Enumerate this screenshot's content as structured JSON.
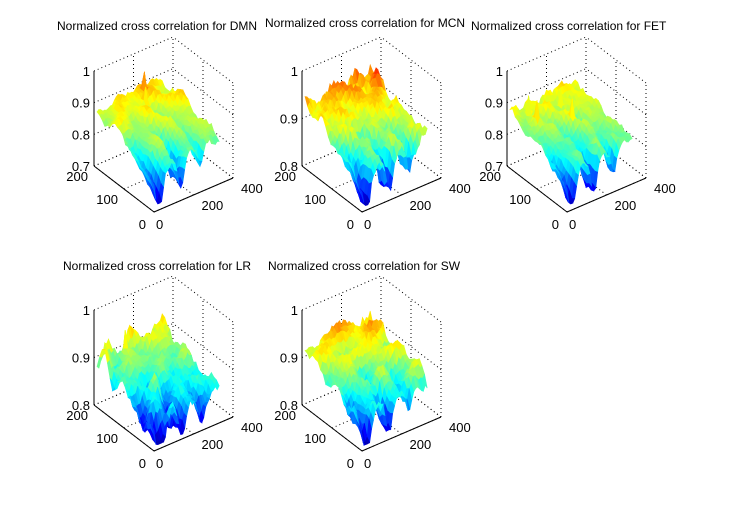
{
  "figure": {
    "background": "#ffffff",
    "colormap": "jet"
  },
  "chart_data": [
    {
      "type": "surface3d",
      "title": "Normalized cross correlation for DMN",
      "xlim": [
        0,
        400
      ],
      "ylim": [
        0,
        200
      ],
      "zlim": [
        0.7,
        1.0
      ],
      "xticks": [
        "0",
        "200",
        "400"
      ],
      "yticks": [
        "0",
        "100",
        "200"
      ],
      "zticks": [
        "0.7",
        "0.8",
        "0.9",
        "1"
      ],
      "surface": {
        "x_extent": [
          0,
          330
        ],
        "y_extent": [
          0,
          190
        ],
        "z_min": 0.72,
        "z_max": 0.96,
        "z_mean": 0.86,
        "seed": 11,
        "valley_depth": 0.13,
        "spikes": 2
      },
      "grid": true
    },
    {
      "type": "surface3d",
      "title": "Normalized cross correlation for MCN",
      "xlim": [
        0,
        400
      ],
      "ylim": [
        0,
        200
      ],
      "zlim": [
        0.8,
        1.0
      ],
      "xticks": [
        "0",
        "200",
        "400"
      ],
      "yticks": [
        "0",
        "100",
        "200"
      ],
      "zticks": [
        "0.8",
        "0.9",
        "1"
      ],
      "surface": {
        "x_extent": [
          0,
          330
        ],
        "y_extent": [
          0,
          190
        ],
        "z_min": 0.81,
        "z_max": 0.98,
        "z_mean": 0.91,
        "seed": 23,
        "valley_depth": 0.09,
        "spikes": 0
      },
      "grid": true
    },
    {
      "type": "surface3d",
      "title": "Normalized cross correlation for FET",
      "xlim": [
        0,
        400
      ],
      "ylim": [
        0,
        200
      ],
      "zlim": [
        0.7,
        1.0
      ],
      "xticks": [
        "0",
        "200",
        "400"
      ],
      "yticks": [
        "0",
        "100",
        "200"
      ],
      "zticks": [
        "0.7",
        "0.8",
        "0.9",
        "1"
      ],
      "surface": {
        "x_extent": [
          0,
          330
        ],
        "y_extent": [
          0,
          190
        ],
        "z_min": 0.72,
        "z_max": 0.97,
        "z_mean": 0.85,
        "seed": 37,
        "valley_depth": 0.12,
        "spikes": 5
      },
      "grid": true
    },
    {
      "type": "surface3d",
      "title": "Normalized cross correlation for LR",
      "xlim": [
        0,
        400
      ],
      "ylim": [
        0,
        200
      ],
      "zlim": [
        0.8,
        1.0
      ],
      "xticks": [
        "0",
        "200",
        "400"
      ],
      "yticks": [
        "0",
        "100",
        "200"
      ],
      "zticks": [
        "0.8",
        "0.9",
        "1"
      ],
      "surface": {
        "x_extent": [
          0,
          330
        ],
        "y_extent": [
          0,
          190
        ],
        "z_min": 0.81,
        "z_max": 0.95,
        "z_mean": 0.88,
        "seed": 51,
        "valley_depth": 0.07,
        "spikes": 1
      },
      "grid": true
    },
    {
      "type": "surface3d",
      "title": "Normalized cross correlation for SW",
      "xlim": [
        0,
        400
      ],
      "ylim": [
        0,
        200
      ],
      "zlim": [
        0.8,
        1.0
      ],
      "xticks": [
        "0",
        "200",
        "400"
      ],
      "yticks": [
        "0",
        "100",
        "200"
      ],
      "zticks": [
        "0.8",
        "0.9",
        "1"
      ],
      "surface": {
        "x_extent": [
          0,
          330
        ],
        "y_extent": [
          0,
          190
        ],
        "z_min": 0.81,
        "z_max": 0.96,
        "z_mean": 0.9,
        "seed": 67,
        "valley_depth": 0.08,
        "spikes": 0
      },
      "grid": true
    }
  ]
}
